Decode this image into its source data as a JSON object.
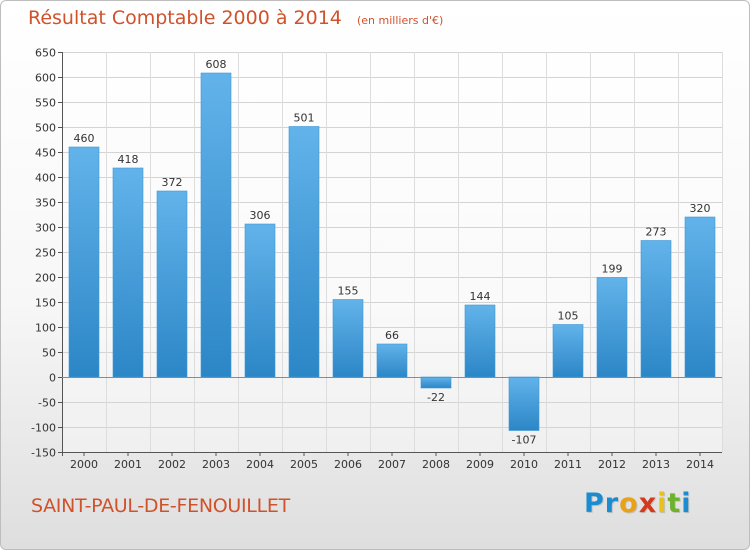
{
  "header": {
    "title": "Résultat Comptable 2000 à 2014",
    "subtitle": "(en milliers d'€)"
  },
  "footer": {
    "commune": "SAINT-PAUL-DE-FENOUILLET",
    "brand": "Proxiti",
    "brand_letters": [
      {
        "ch": "P",
        "color": "#1a8ccf"
      },
      {
        "ch": "r",
        "color": "#1a8ccf"
      },
      {
        "ch": "o",
        "color": "#e8a21a"
      },
      {
        "ch": "x",
        "color": "#d23a1e"
      },
      {
        "ch": "i",
        "color": "#e8c21a"
      },
      {
        "ch": "t",
        "color": "#6cb22a"
      },
      {
        "ch": "i",
        "color": "#1a8ccf"
      }
    ]
  },
  "colors": {
    "bar_light": "#62b3ea",
    "bar_dark": "#2c86c6",
    "title": "#d0522b"
  },
  "chart_data": {
    "type": "bar",
    "categories": [
      "2000",
      "2001",
      "2002",
      "2003",
      "2004",
      "2005",
      "2006",
      "2007",
      "2008",
      "2009",
      "2010",
      "2011",
      "2012",
      "2013",
      "2014"
    ],
    "values": [
      460,
      418,
      372,
      608,
      306,
      501,
      155,
      66,
      -22,
      144,
      -107,
      105,
      199,
      273,
      320
    ],
    "data_labels": [
      "460",
      "418",
      "372",
      "608",
      "306",
      "501",
      "155",
      "66",
      "-22",
      "144",
      "-107",
      "105",
      "199",
      "273",
      "320"
    ],
    "ylim": [
      -150,
      650
    ],
    "yticks": [
      -150,
      -100,
      -50,
      0,
      50,
      100,
      150,
      200,
      250,
      300,
      350,
      400,
      450,
      500,
      550,
      600,
      650
    ],
    "ytick_labels": [
      "-150",
      "-100",
      "-50",
      "0",
      "50",
      "100",
      "150",
      "200",
      "250",
      "300",
      "350",
      "400",
      "450",
      "500",
      "550",
      "600",
      "650"
    ],
    "grid": true,
    "legend": "none",
    "title": "Résultat Comptable 2000 à 2014",
    "xlabel": "",
    "ylabel": ""
  }
}
